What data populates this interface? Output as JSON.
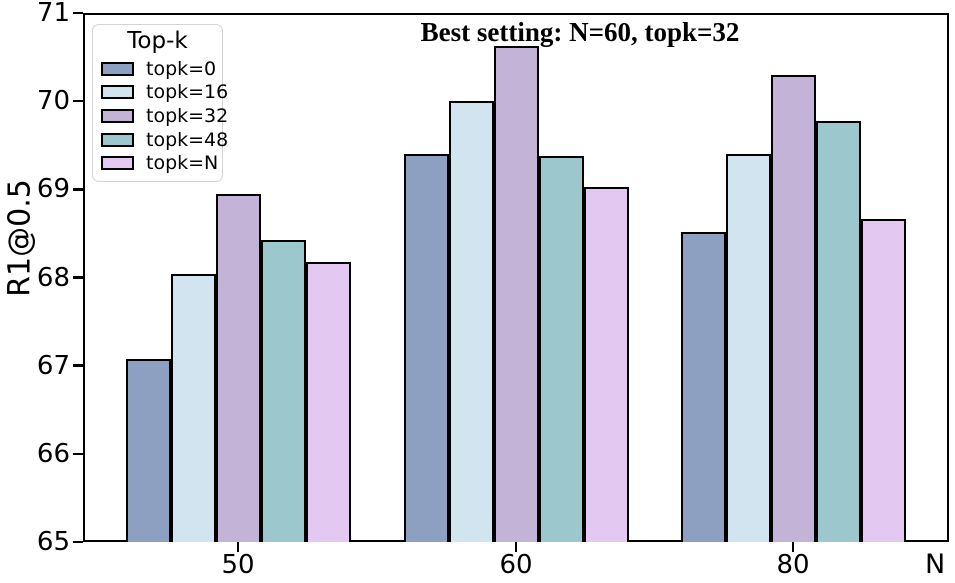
{
  "chart_data": {
    "type": "bar",
    "annotation": "Best setting: N=60, topk=32",
    "xlabel": "N",
    "ylabel": "R1@0.5",
    "ylim": [
      65,
      71
    ],
    "yticks": [
      65,
      66,
      67,
      68,
      69,
      70,
      71
    ],
    "categories": [
      "50",
      "60",
      "80"
    ],
    "grid": false,
    "legend": {
      "title": "Top-k",
      "position": "upper left"
    },
    "bar_edge_color": "#000000",
    "series": [
      {
        "name": "topk=0",
        "color": "#8ea0c1",
        "values": [
          67.08,
          69.4,
          68.52
        ]
      },
      {
        "name": "topk=16",
        "color": "#d3e4f1",
        "values": [
          68.04,
          70.0,
          69.4
        ]
      },
      {
        "name": "topk=32",
        "color": "#c2b3d7",
        "values": [
          68.95,
          70.63,
          70.3
        ]
      },
      {
        "name": "topk=48",
        "color": "#9cc8cd",
        "values": [
          68.43,
          69.38,
          69.78
        ]
      },
      {
        "name": "topk=N",
        "color": "#e3c9f1",
        "values": [
          68.18,
          69.03,
          68.66
        ]
      }
    ]
  }
}
